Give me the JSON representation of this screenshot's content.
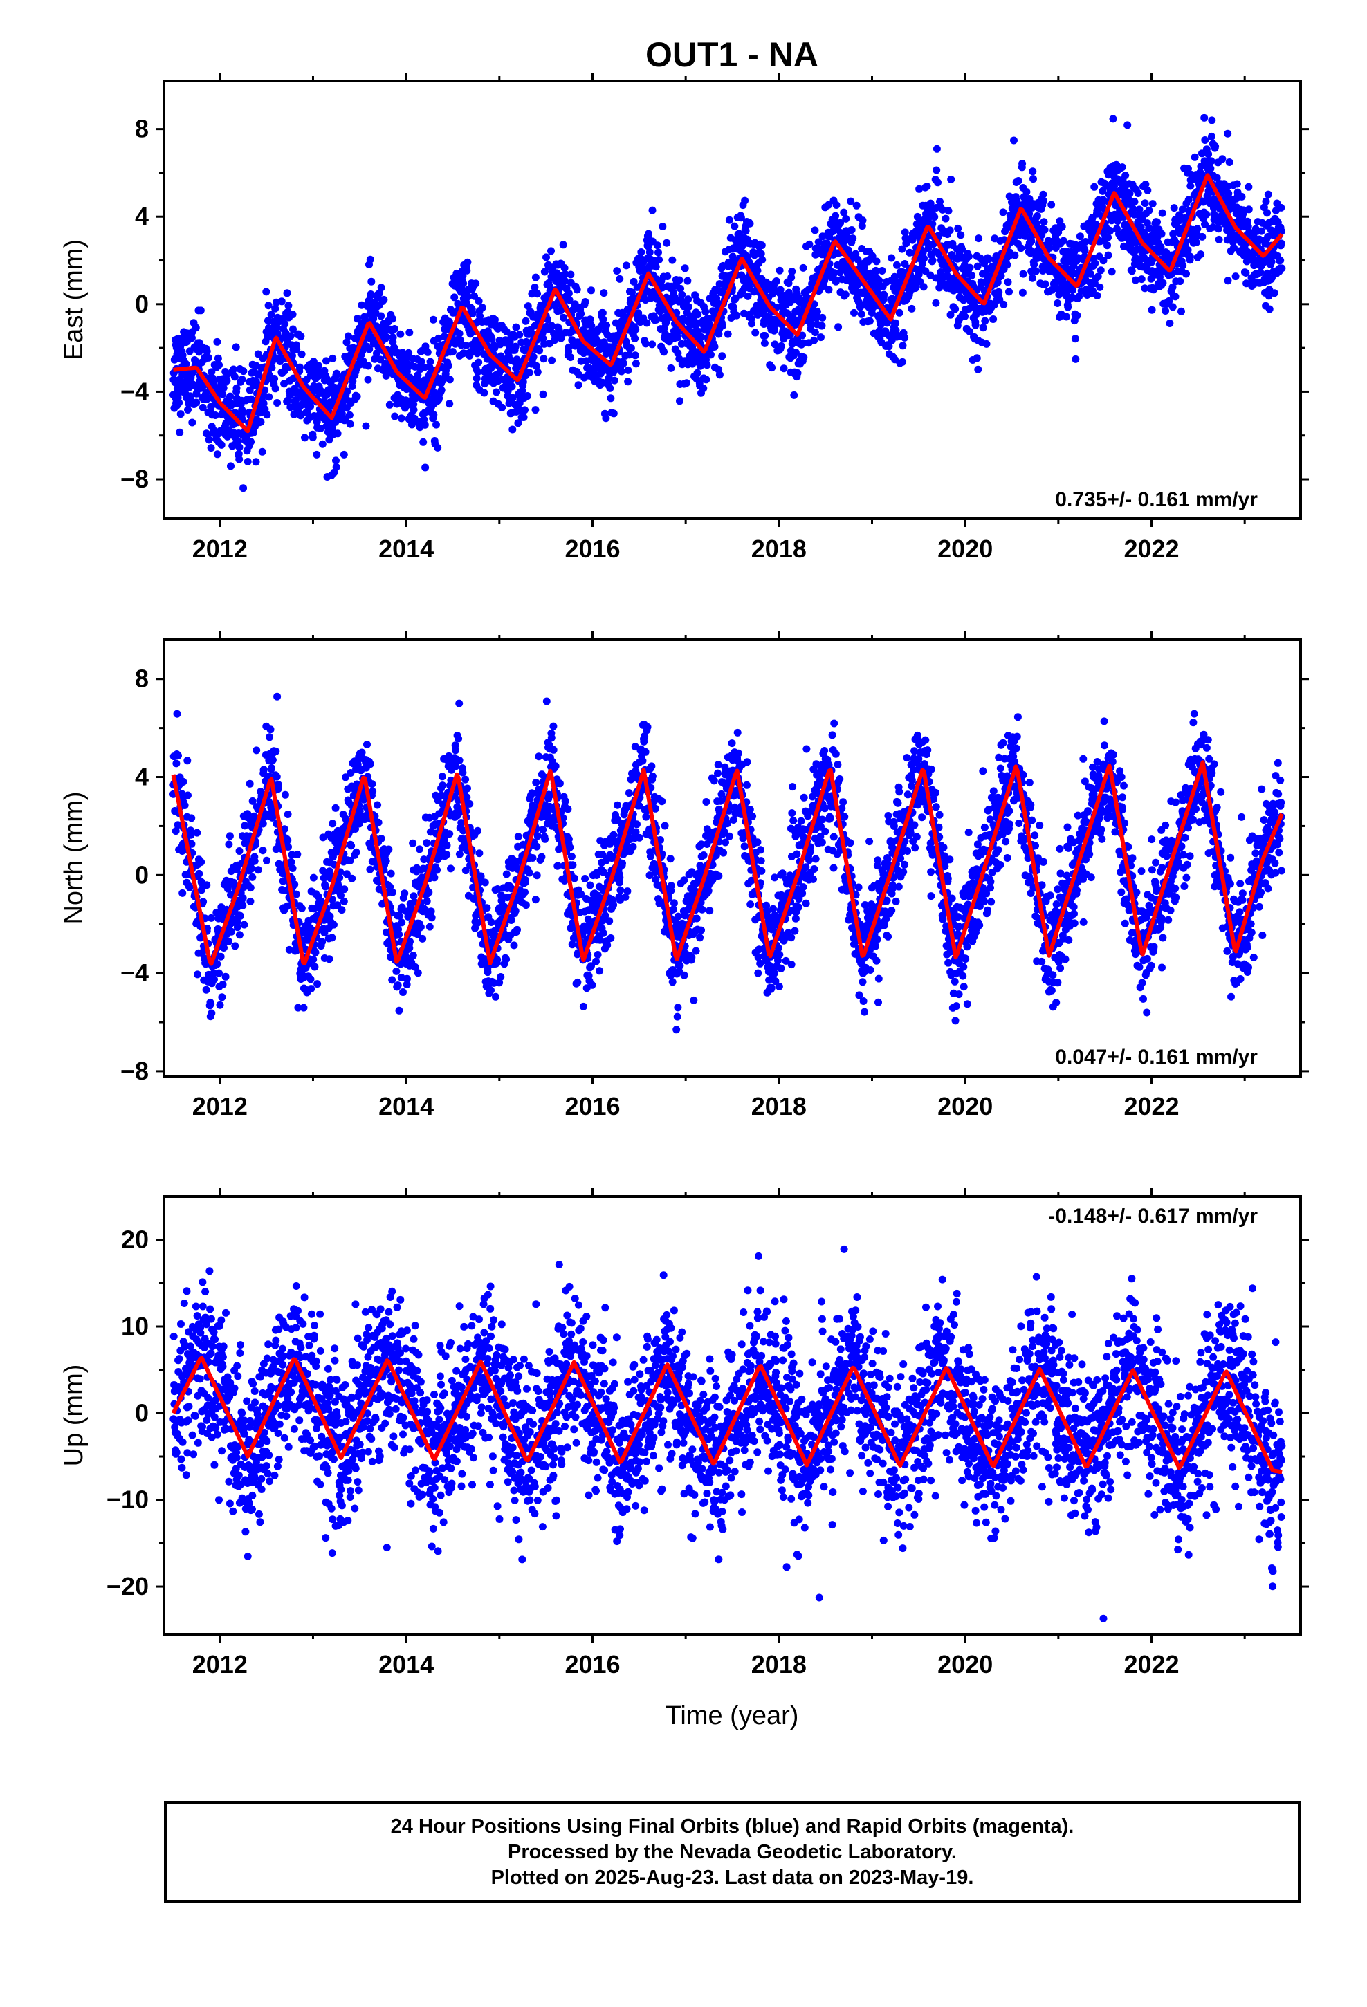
{
  "title": "OUT1 - NA",
  "x_axis_label": "Time (year)",
  "colors": {
    "points": "#0000ff",
    "fit": "#ff0000",
    "frame": "#000000"
  },
  "chart_data": [
    {
      "type": "scatter",
      "id": "east",
      "ylabel": "East (mm)",
      "xlim": [
        2011.4,
        2023.6
      ],
      "ylim": [
        -9.8,
        10.2
      ],
      "yticks": [
        -8,
        -4,
        0,
        4,
        8
      ],
      "yticks_minor": [
        -6,
        -2,
        2,
        6
      ],
      "xticks": [
        2012,
        2014,
        2016,
        2018,
        2020,
        2022
      ],
      "rate_label": "0.735+/- 0.161 mm/yr",
      "rate_label_pos": "bottom-right",
      "trend": {
        "start": 2011.5,
        "end": 2023.4,
        "value_at_start": -3.3,
        "value_at_end": 3.0
      },
      "annual_amplitude": 2.3,
      "annual_phase_peak": 0.6,
      "point_scatter": 1.1,
      "series": [
        {
          "name": "",
          "kind": "fit",
          "x": [
            2011.5,
            2011.75,
            2012.0,
            2012.3,
            2012.6,
            2012.9,
            2013.2,
            2013.6,
            2013.9,
            2014.2,
            2014.6,
            2014.9,
            2015.2,
            2015.6,
            2015.9,
            2016.2,
            2016.6,
            2016.9,
            2017.2,
            2017.6,
            2017.9,
            2018.2,
            2018.6,
            2018.9,
            2019.2,
            2019.6,
            2019.9,
            2020.2,
            2020.6,
            2020.9,
            2021.2,
            2021.6,
            2021.9,
            2022.2,
            2022.6,
            2022.9,
            2023.2,
            2023.4
          ],
          "y": [
            -3.0,
            -2.9,
            -4.5,
            -5.8,
            -1.5,
            -3.8,
            -5.2,
            -0.8,
            -3.1,
            -4.3,
            -0.1,
            -2.3,
            -3.5,
            0.7,
            -1.7,
            -2.8,
            1.4,
            -0.8,
            -2.2,
            2.1,
            -0.1,
            -1.4,
            2.9,
            1.1,
            -0.7,
            3.6,
            1.4,
            0.0,
            4.4,
            2.1,
            0.8,
            5.1,
            2.8,
            1.5,
            5.9,
            3.5,
            2.2,
            3.2
          ]
        }
      ]
    },
    {
      "type": "scatter",
      "id": "north",
      "ylabel": "North (mm)",
      "xlim": [
        2011.4,
        2023.6
      ],
      "ylim": [
        -8.2,
        9.6
      ],
      "yticks": [
        -8,
        -4,
        0,
        4,
        8
      ],
      "yticks_minor": [
        -6,
        -2,
        2,
        6
      ],
      "xticks": [
        2012,
        2014,
        2016,
        2018,
        2020,
        2022
      ],
      "rate_label": "0.047+/- 0.161 mm/yr",
      "rate_label_pos": "bottom-right",
      "trend": {
        "start": 2011.5,
        "end": 2023.4,
        "value_at_start": 0.3,
        "value_at_end": 0.7
      },
      "annual_amplitude": 4.0,
      "annual_phase_peak": 0.55,
      "point_scatter": 1.1,
      "series": [
        {
          "name": "",
          "kind": "fit",
          "x": [
            2011.5,
            2011.9,
            2012.2,
            2012.55,
            2012.9,
            2013.2,
            2013.55,
            2013.9,
            2014.2,
            2014.55,
            2014.9,
            2015.2,
            2015.55,
            2015.9,
            2016.2,
            2016.55,
            2016.9,
            2017.2,
            2017.55,
            2017.9,
            2018.2,
            2018.55,
            2018.9,
            2019.2,
            2019.55,
            2019.9,
            2020.2,
            2020.55,
            2020.9,
            2021.2,
            2021.55,
            2021.9,
            2022.2,
            2022.55,
            2022.9,
            2023.2,
            2023.4
          ],
          "y": [
            4.1,
            -3.7,
            -0.5,
            4.0,
            -3.7,
            -0.5,
            4.1,
            -3.6,
            -0.4,
            4.2,
            -3.6,
            -0.3,
            4.3,
            -3.5,
            -0.2,
            4.3,
            -3.5,
            -0.1,
            4.3,
            -3.4,
            0.0,
            4.4,
            -3.4,
            0.1,
            4.4,
            -3.4,
            0.2,
            4.5,
            -3.3,
            0.3,
            4.5,
            -3.3,
            0.4,
            4.6,
            -3.2,
            0.7,
            2.5
          ]
        }
      ]
    },
    {
      "type": "scatter",
      "id": "up",
      "ylabel": "Up (mm)",
      "xlim": [
        2011.4,
        2023.6
      ],
      "ylim": [
        -25.5,
        25
      ],
      "yticks": [
        -20,
        -10,
        0,
        10,
        20
      ],
      "yticks_minor": [
        -15,
        -5,
        5,
        15
      ],
      "xticks": [
        2012,
        2014,
        2016,
        2018,
        2020,
        2022
      ],
      "rate_label": "-0.148+/- 0.617 mm/yr",
      "rate_label_pos": "top-right",
      "trend": {
        "start": 2011.5,
        "end": 2023.4,
        "value_at_start": 0.5,
        "value_at_end": -1.2
      },
      "annual_amplitude": 6.0,
      "annual_phase_peak": 0.8,
      "point_scatter": 4.5,
      "series": [
        {
          "name": "",
          "kind": "fit",
          "x": [
            2011.5,
            2011.8,
            2012.3,
            2012.8,
            2013.3,
            2013.8,
            2014.3,
            2014.8,
            2015.3,
            2015.8,
            2016.3,
            2016.8,
            2017.3,
            2017.8,
            2018.3,
            2018.8,
            2019.3,
            2019.8,
            2020.3,
            2020.8,
            2021.3,
            2021.8,
            2022.3,
            2022.8,
            2023.3,
            2023.4
          ],
          "y": [
            0.0,
            6.5,
            -5.0,
            6.4,
            -5.2,
            6.2,
            -5.4,
            6.0,
            -5.6,
            5.9,
            -5.8,
            5.7,
            -5.9,
            5.6,
            -6.0,
            5.4,
            -6.1,
            5.3,
            -6.2,
            5.1,
            -6.3,
            5.0,
            -6.4,
            4.9,
            -6.6,
            -6.8
          ]
        }
      ]
    }
  ],
  "footer": {
    "line1": "24 Hour Positions Using Final Orbits (blue) and Rapid Orbits (magenta).",
    "line2": "Processed by the Nevada Geodetic Laboratory.",
    "line3": "Plotted on 2025-Aug-23. Last data on 2023-May-19."
  }
}
